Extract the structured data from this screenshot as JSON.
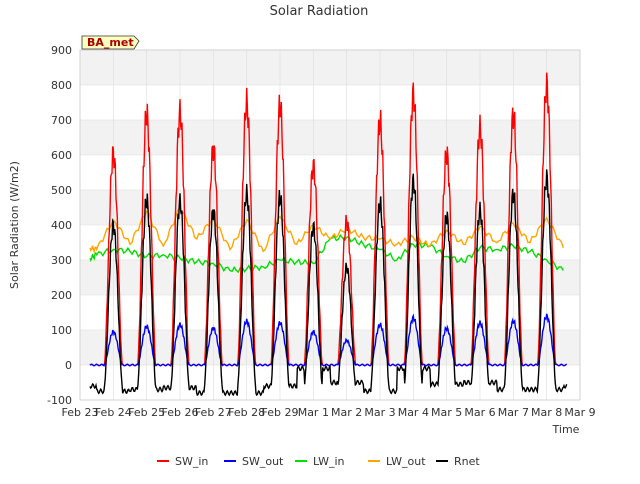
{
  "chart_data": {
    "type": "line",
    "title": "Solar Radiation",
    "xlabel": "Time",
    "ylabel": "Solar Radiation (W/m2)",
    "annotation": "BA_met",
    "ylim": [
      -100,
      900
    ],
    "xlim": [
      "Feb 23",
      "Mar 9"
    ],
    "yticks": [
      -100,
      0,
      100,
      200,
      300,
      400,
      500,
      600,
      700,
      800,
      900
    ],
    "xticks": [
      "Feb 23",
      "Feb 24",
      "Feb 25",
      "Feb 26",
      "Feb 27",
      "Feb 28",
      "Feb 29",
      "Mar 1",
      "Mar 2",
      "Mar 3",
      "Mar 4",
      "Mar 5",
      "Mar 6",
      "Mar 7",
      "Mar 8",
      "Mar 9"
    ],
    "grid": true,
    "legend_position": "bottom",
    "x_day_index": [
      0,
      1,
      2,
      3,
      4,
      5,
      6,
      7,
      8,
      9,
      10,
      11,
      12,
      13,
      14,
      15
    ],
    "series": [
      {
        "name": "SW_in",
        "color": "#ff0000",
        "daily_peak_day": [
          1.0,
          2.0,
          3.0,
          4.0,
          5.0,
          6.0,
          7.0,
          8.0,
          9.0,
          10.0,
          11.0,
          12.0,
          13.0,
          14.0
        ],
        "daily_peak_value": [
          605,
          715,
          720,
          620,
          750,
          740,
          570,
          410,
          695,
          775,
          605,
          675,
          715,
          800
        ],
        "night_value": 0
      },
      {
        "name": "SW_out",
        "color": "#0000ff",
        "daily_peak_day": [
          1.0,
          2.0,
          3.0,
          4.0,
          5.0,
          6.0,
          7.0,
          8.0,
          9.0,
          10.0,
          11.0,
          12.0,
          13.0,
          14.0
        ],
        "daily_peak_value": [
          95,
          110,
          115,
          105,
          125,
          120,
          95,
          70,
          115,
          135,
          105,
          120,
          125,
          140
        ],
        "night_value": 0
      },
      {
        "name": "LW_in",
        "color": "#00dd00",
        "x": [
          0.3,
          0.5,
          1.0,
          1.5,
          2.0,
          2.5,
          3.0,
          3.5,
          4.0,
          4.5,
          5.0,
          5.5,
          6.0,
          6.5,
          7.0,
          7.5,
          8.0,
          8.5,
          9.0,
          9.5,
          10.0,
          10.5,
          11.0,
          11.5,
          12.0,
          12.5,
          13.0,
          13.5,
          14.0,
          14.5
        ],
        "y": [
          305,
          315,
          330,
          325,
          310,
          315,
          305,
          295,
          290,
          270,
          275,
          280,
          300,
          295,
          290,
          360,
          365,
          345,
          330,
          300,
          345,
          340,
          310,
          295,
          335,
          330,
          340,
          325,
          300,
          270
        ]
      },
      {
        "name": "LW_out",
        "color": "#ffa500",
        "x": [
          0.3,
          0.5,
          1.0,
          1.5,
          2.0,
          2.5,
          3.0,
          3.5,
          4.0,
          4.5,
          5.0,
          5.5,
          6.0,
          6.5,
          7.0,
          7.5,
          8.0,
          8.5,
          9.0,
          9.5,
          10.0,
          10.5,
          11.0,
          11.5,
          12.0,
          12.5,
          13.0,
          13.5,
          14.0,
          14.5
        ],
        "y": [
          335,
          330,
          415,
          345,
          440,
          340,
          450,
          360,
          420,
          330,
          415,
          325,
          425,
          345,
          400,
          360,
          390,
          365,
          360,
          345,
          365,
          340,
          385,
          345,
          395,
          350,
          405,
          350,
          420,
          335
        ]
      },
      {
        "name": "Rnet",
        "color": "#000000",
        "daily_peak_day": [
          1.0,
          2.0,
          3.0,
          4.0,
          5.0,
          6.0,
          7.0,
          8.0,
          9.0,
          10.0,
          11.0,
          12.0,
          13.0,
          14.0
        ],
        "daily_peak_value": [
          400,
          470,
          465,
          440,
          490,
          480,
          395,
          280,
          460,
          525,
          425,
          440,
          490,
          535
        ],
        "daily_min_value": [
          -75,
          -70,
          -65,
          -80,
          -80,
          -60,
          -10,
          -50,
          -75,
          -10,
          -55,
          -50,
          -70,
          -70
        ],
        "night_value": -60
      }
    ]
  }
}
